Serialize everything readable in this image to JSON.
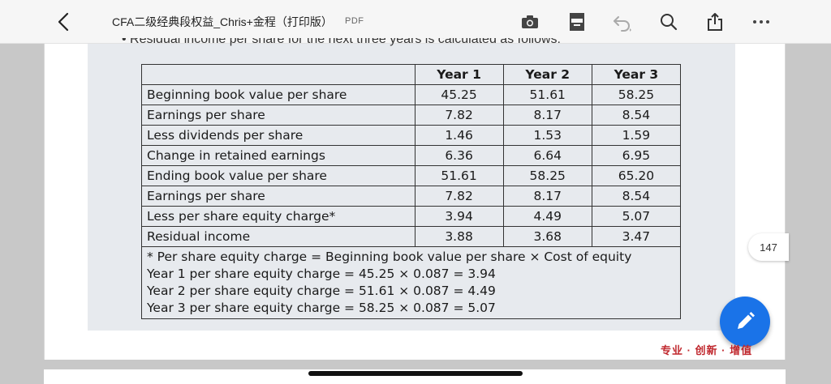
{
  "header": {
    "title": "CFA二级经典段权益_Chris+金程（打印版）",
    "file_type": "PDF",
    "icons": [
      "back-chevron-icon",
      "camera-icon",
      "book-icon",
      "undo-icon",
      "search-icon",
      "share-icon",
      "more-icon"
    ]
  },
  "slide": {
    "cut_text": "• Residual income per share for the next three years is calculated as follows:",
    "table": {
      "headers": [
        "",
        "Year 1",
        "Year 2",
        "Year 3"
      ],
      "rows": [
        {
          "label": "Beginning book value per share",
          "values": [
            "45.25",
            "51.61",
            "58.25"
          ]
        },
        {
          "label": "Earnings per share",
          "values": [
            "7.82",
            "8.17",
            "8.54"
          ]
        },
        {
          "label": "Less dividends per share",
          "values": [
            "1.46",
            "1.53",
            "1.59"
          ]
        },
        {
          "label": "Change in retained earnings",
          "values": [
            "6.36",
            "6.64",
            "6.95"
          ]
        },
        {
          "label": "Ending book value per share",
          "values": [
            "51.61",
            "58.25",
            "65.20"
          ]
        },
        {
          "label": "Earnings per share",
          "values": [
            "7.82",
            "8.17",
            "8.54"
          ]
        },
        {
          "label": "Less per share equity charge*",
          "values": [
            "3.94",
            "4.49",
            "5.07"
          ]
        },
        {
          "label": "Residual income",
          "values": [
            "3.88",
            "3.68",
            "3.47"
          ]
        }
      ],
      "notes": [
        "* Per share equity charge = Beginning book value per share × Cost of equity",
        "Year 1 per share equity charge = 45.25 × 0.087 = 3.94",
        "Year 2 per share equity charge = 51.61 × 0.087 = 4.49",
        "Year 3 per share equity charge = 58.25 × 0.087 = 5.07"
      ]
    }
  },
  "page_indicator": "147",
  "brand_footer": "专业 · 创新 · 增值",
  "colors": {
    "fab": "#1a73e8",
    "brand": "#c0282e",
    "slide_bg": "#e7eaee"
  }
}
